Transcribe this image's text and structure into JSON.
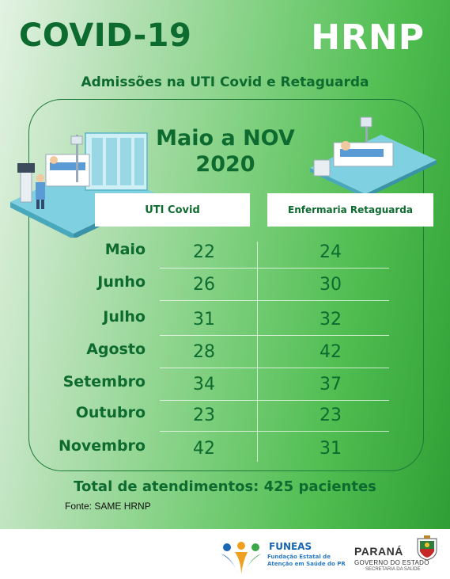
{
  "header": {
    "title_left": "COVID-19",
    "title_right": "HRNP",
    "subtitle": "Admissões na UTI Covid e Retaguarda"
  },
  "period": {
    "line1": "Maio a NOV",
    "line2": "2020"
  },
  "table": {
    "columns": [
      "UTI Covid",
      "Enfermaria Retaguarda"
    ],
    "rows": [
      {
        "month": "Maio",
        "uti": "22",
        "enf": "24"
      },
      {
        "month": "Junho",
        "uti": "26",
        "enf": "30"
      },
      {
        "month": "Julho",
        "uti": "31",
        "enf": "32"
      },
      {
        "month": "Agosto",
        "uti": "28",
        "enf": "42"
      },
      {
        "month": "Setembro",
        "uti": "34",
        "enf": "37"
      },
      {
        "month": "Outubro",
        "uti": "23",
        "enf": "23"
      },
      {
        "month": "Novembro",
        "uti": "42",
        "enf": "31"
      }
    ]
  },
  "total": "Total de atendimentos: 425 pacientes",
  "source": "Fonte: SAME HRNP",
  "logos": {
    "funeas_name": "FUNEAS",
    "funeas_desc": "Fundação Estatal de Atenção em Saúde do PR",
    "parana_name": "PARANÁ",
    "parana_gov": "GOVERNO DO ESTADO",
    "parana_sec": "SECRETARIA DA SAÚDE"
  },
  "colors": {
    "dark_green": "#0e6b2f",
    "bright_green": "#2f9f35",
    "light_green": "#e3f2e3"
  }
}
